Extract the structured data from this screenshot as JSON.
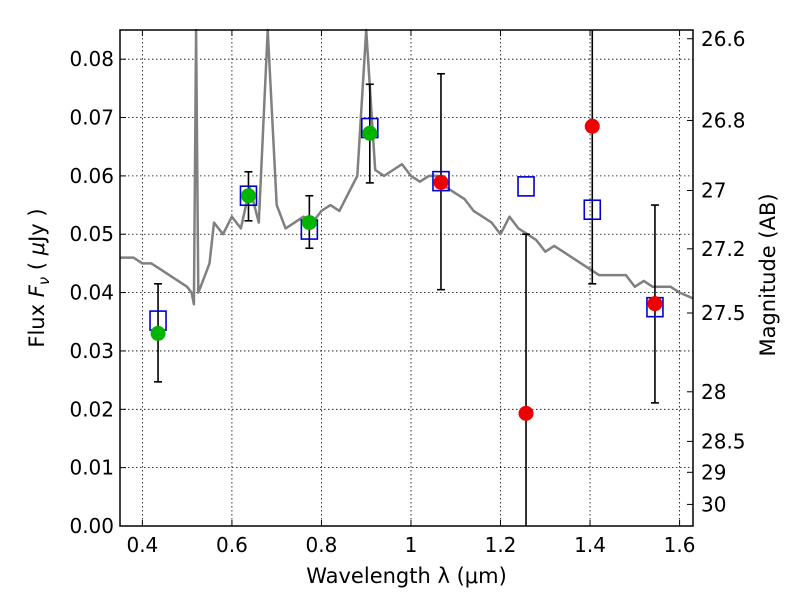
{
  "chart_data": {
    "type": "scatter",
    "xlabel": "Wavelength  λ (μm)",
    "ylabel": "Flux  F_ν  ( μJy )",
    "ylabel_parts": {
      "pre": "Flux  ",
      "sym": "F",
      "sub": "ν",
      "open": "  ( ",
      "mu": "μ",
      "unit": "Jy )"
    },
    "ylabel_right": "Magnitude (AB)",
    "xlim": [
      0.35,
      1.63
    ],
    "ylim": [
      0.0,
      0.085
    ],
    "x_ticks": [
      0.4,
      0.6,
      0.8,
      1.0,
      1.2,
      1.4,
      1.6
    ],
    "x_tick_labels": [
      "0.4",
      "0.6",
      "0.8",
      "1",
      "1.2",
      "1.4",
      "1.6"
    ],
    "y_ticks": [
      0.0,
      0.01,
      0.02,
      0.03,
      0.04,
      0.05,
      0.06,
      0.07,
      0.08
    ],
    "y_tick_labels": [
      "0.00",
      "0.01",
      "0.02",
      "0.03",
      "0.04",
      "0.05",
      "0.06",
      "0.07",
      "0.08"
    ],
    "right_ticks": [
      {
        "flux": 0.0835,
        "label": "26.6"
      },
      {
        "flux": 0.0695,
        "label": "26.8"
      },
      {
        "flux": 0.0575,
        "label": "27"
      },
      {
        "flux": 0.0475,
        "label": "27.2"
      },
      {
        "flux": 0.0365,
        "label": "27.5"
      },
      {
        "flux": 0.023,
        "label": "28"
      },
      {
        "flux": 0.0145,
        "label": "28.5"
      },
      {
        "flux": 0.0092,
        "label": "29"
      },
      {
        "flux": 0.0037,
        "label": "30"
      }
    ],
    "grid": true,
    "colors": {
      "model": "#808080",
      "detection": "#00b400",
      "nondetection": "#ee0000",
      "model_flux": "#0000cc",
      "errorbar": "#000000"
    },
    "series": [
      {
        "marker": "line",
        "x": [
          0.35,
          0.38,
          0.4,
          0.42,
          0.44,
          0.46,
          0.48,
          0.5,
          0.51,
          0.515,
          0.52,
          0.525,
          0.53,
          0.54,
          0.55,
          0.56,
          0.58,
          0.6,
          0.62,
          0.64,
          0.66,
          0.68,
          0.7,
          0.72,
          0.74,
          0.76,
          0.78,
          0.8,
          0.82,
          0.84,
          0.86,
          0.88,
          0.9,
          0.92,
          0.94,
          0.96,
          0.98,
          1.0,
          1.02,
          1.04,
          1.06,
          1.08,
          1.1,
          1.12,
          1.14,
          1.16,
          1.18,
          1.2,
          1.22,
          1.24,
          1.26,
          1.28,
          1.3,
          1.32,
          1.34,
          1.36,
          1.38,
          1.4,
          1.42,
          1.44,
          1.46,
          1.48,
          1.5,
          1.52,
          1.54,
          1.56,
          1.58,
          1.6,
          1.63
        ],
        "y": [
          0.046,
          0.046,
          0.045,
          0.045,
          0.044,
          0.043,
          0.042,
          0.041,
          0.04,
          0.038,
          0.085,
          0.04,
          0.041,
          0.043,
          0.045,
          0.052,
          0.05,
          0.053,
          0.051,
          0.058,
          0.052,
          0.085,
          0.055,
          0.051,
          0.052,
          0.053,
          0.052,
          0.054,
          0.055,
          0.054,
          0.057,
          0.06,
          0.085,
          0.061,
          0.06,
          0.061,
          0.062,
          0.06,
          0.059,
          0.06,
          0.06,
          0.058,
          0.057,
          0.056,
          0.054,
          0.053,
          0.052,
          0.05,
          0.053,
          0.051,
          0.05,
          0.049,
          0.047,
          0.048,
          0.047,
          0.046,
          0.045,
          0.044,
          0.043,
          0.043,
          0.043,
          0.043,
          0.041,
          0.042,
          0.041,
          0.041,
          0.041,
          0.04,
          0.039
        ]
      },
      {
        "marker": "square",
        "x": [
          0.435,
          0.637,
          0.773,
          0.908,
          1.067,
          1.257,
          1.405,
          1.545
        ],
        "y": [
          0.0352,
          0.0566,
          0.0508,
          0.0682,
          0.0591,
          0.0582,
          0.0542,
          0.0375
        ]
      },
      {
        "marker": "errorbar",
        "x": [
          0.435,
          0.637,
          0.773,
          0.908,
          1.067,
          1.257,
          1.405,
          1.545
        ],
        "y": [
          0.033,
          0.0566,
          0.052,
          0.0673,
          0.0589,
          0.0193,
          0.0685,
          0.0381
        ],
        "err_low": [
          0.0247,
          0.0523,
          0.0476,
          0.0588,
          0.0405,
          0.0,
          0.0415,
          0.0211
        ],
        "err_high": [
          0.0415,
          0.0607,
          0.0566,
          0.0757,
          0.0775,
          0.05,
          0.085,
          0.055
        ]
      },
      {
        "marker": "circle",
        "x": [
          0.435,
          0.637,
          0.773,
          0.908
        ],
        "y": [
          0.033,
          0.0566,
          0.052,
          0.0673
        ]
      },
      {
        "marker": "circle",
        "x": [
          1.067,
          1.257,
          1.405,
          1.545
        ],
        "y": [
          0.0589,
          0.0193,
          0.0685,
          0.0381
        ]
      }
    ]
  }
}
